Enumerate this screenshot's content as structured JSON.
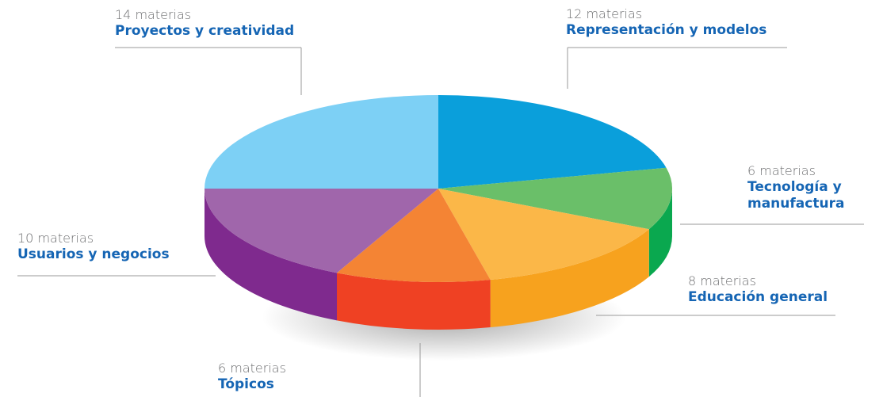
{
  "chart_data": {
    "type": "pie",
    "categories": [
      "Representación y modelos",
      "Tecnología y manufactura",
      "Educación general",
      "Tópicos",
      "Usuarios y negocios",
      "Proyectos y creatividad"
    ],
    "values": [
      12,
      6,
      8,
      6,
      10,
      14
    ],
    "value_labels": [
      "12 materias",
      "6 materias",
      "8 materias",
      "6 materias",
      "10 materias",
      "14 materias"
    ],
    "colors": [
      "#0a9fdb",
      "#6abf69",
      "#fbb748",
      "#f48434",
      "#a066ab",
      "#7dd0f5"
    ],
    "side_colors": [
      "#0784b8",
      "#0aa84f",
      "#f7a21e",
      "#ef4123",
      "#7f2a8e",
      "#5bb8e0"
    ]
  }
}
